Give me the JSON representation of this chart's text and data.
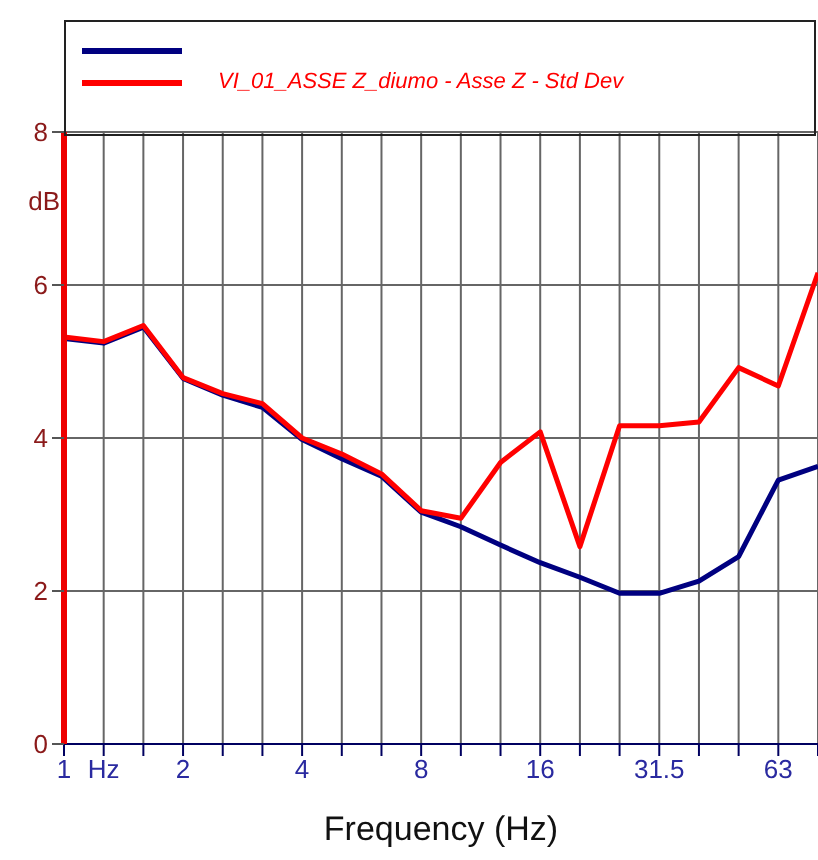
{
  "chart_data": {
    "type": "line",
    "xlabel": "Frequency (Hz)",
    "ylabel": "dB",
    "categories": [
      "1",
      "Hz",
      null,
      "2",
      null,
      null,
      "4",
      null,
      null,
      "8",
      null,
      null,
      "16",
      null,
      null,
      "31.5",
      null,
      null,
      "63",
      null
    ],
    "series": [
      {
        "color": "#000080",
        "values": [
          5.3,
          5.24,
          5.45,
          4.78,
          4.56,
          4.4,
          3.98,
          3.73,
          3.5,
          3.03,
          2.84,
          2.6,
          2.37,
          2.18,
          1.97,
          1.97,
          2.13,
          2.45,
          3.45,
          3.63
        ]
      },
      {
        "name": "VI_01_ASSE Z_diumo - Asse Z - Std Dev",
        "color": "#ff0000",
        "values": [
          5.32,
          5.26,
          5.47,
          4.79,
          4.58,
          4.45,
          4.0,
          3.79,
          3.53,
          3.05,
          2.95,
          3.68,
          4.08,
          2.58,
          4.16,
          4.16,
          4.21,
          4.92,
          4.68,
          6.16
        ]
      }
    ],
    "ylim": [
      0,
      8
    ],
    "yticks": [
      0,
      2,
      4,
      6,
      8
    ],
    "grid": true,
    "legend": "top",
    "marker": "none",
    "line_style": "solid"
  }
}
